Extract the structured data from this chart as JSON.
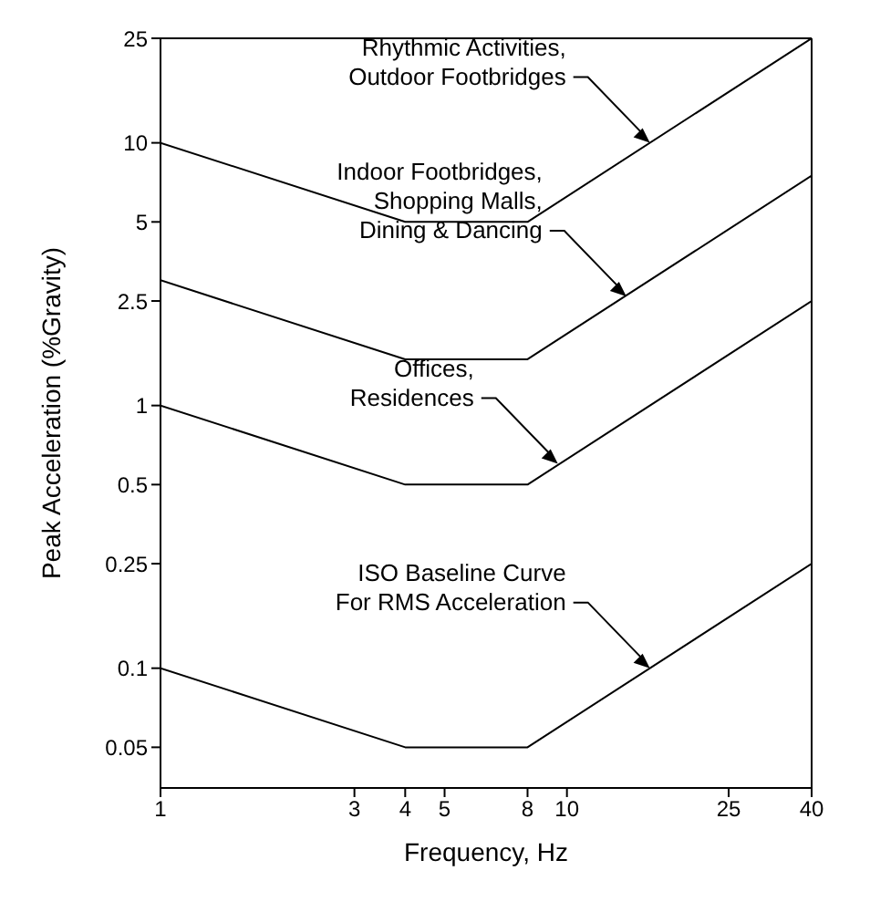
{
  "chart_data": {
    "type": "line",
    "xlabel": "Frequency, Hz",
    "ylabel": "Peak Acceleration (%Gravity)",
    "log": "xy",
    "xlim": [
      1,
      40
    ],
    "xticks": [
      1,
      3,
      4,
      5,
      8,
      10,
      25,
      40
    ],
    "ylim": [
      0.035,
      25
    ],
    "yticks": [
      0.05,
      0.1,
      0.25,
      0.5,
      1,
      2.5,
      5,
      10,
      25
    ],
    "marker": "none",
    "line_style": "solid",
    "series": [
      {
        "color": "#000000",
        "x": [
          1,
          4,
          8,
          40
        ],
        "values": [
          10,
          5,
          5,
          25
        ]
      },
      {
        "color": "#000000",
        "x": [
          1,
          4,
          8,
          40
        ],
        "values": [
          3,
          1.5,
          1.5,
          7.5
        ]
      },
      {
        "color": "#000000",
        "x": [
          1,
          4,
          8,
          40
        ],
        "values": [
          1,
          0.5,
          0.5,
          2.5
        ]
      },
      {
        "color": "#000000",
        "x": [
          1,
          4,
          8,
          40
        ],
        "values": [
          0.1,
          0.05,
          0.05,
          0.25
        ]
      }
    ],
    "annotations": [
      {
        "text": "Rhythmic Activities,\nOutdoor Footbridges",
        "x": 16,
        "y": 10
      },
      {
        "text": "Indoor Footbridges,\nShopping Malls,\nDining & Dancing",
        "x": 14,
        "y": 2.6
      },
      {
        "text": "Offices,\nResidences",
        "x": 9.5,
        "y": 0.6
      },
      {
        "text": "ISO Baseline Curve\nFor RMS Acceleration",
        "x": 16,
        "y": 0.1
      }
    ]
  }
}
